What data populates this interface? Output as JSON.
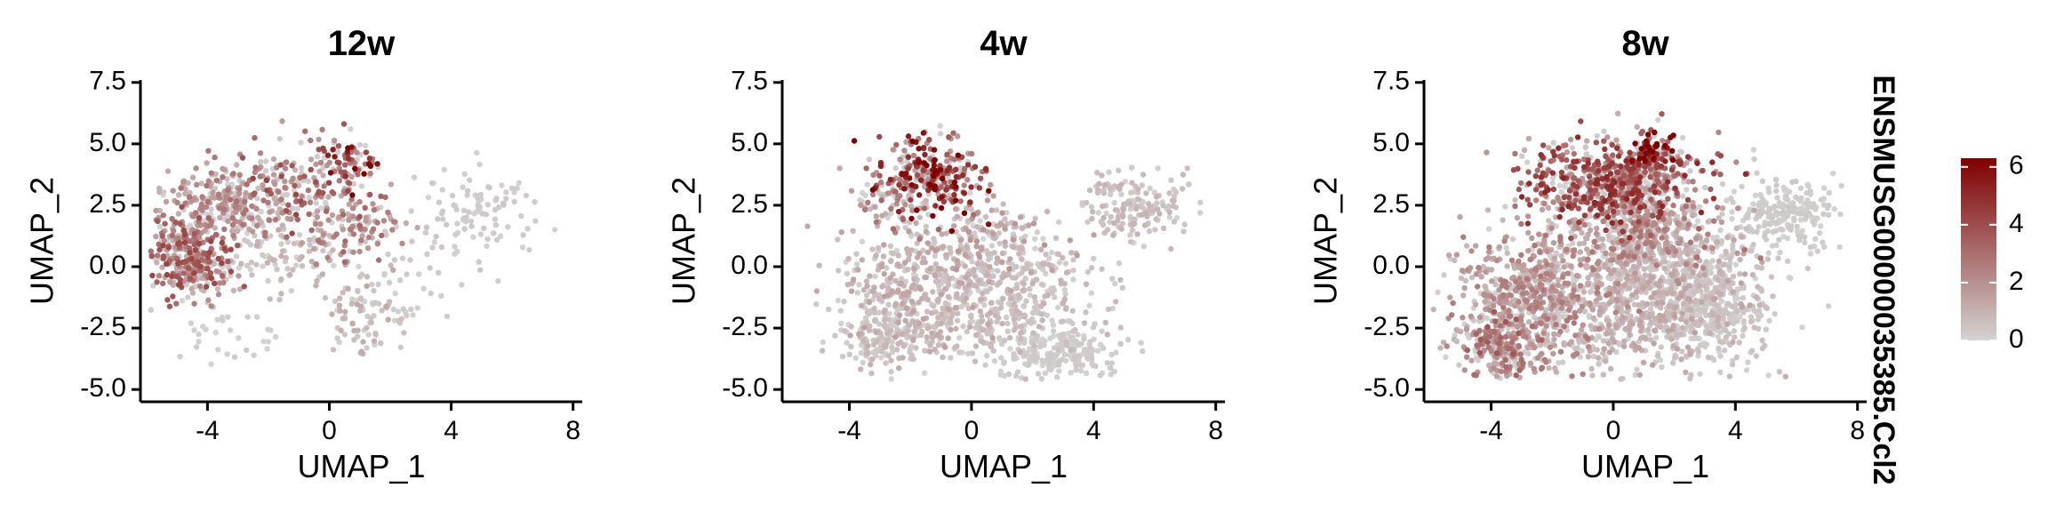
{
  "chart_data": {
    "type": "scatter",
    "feature": "ENSMUSG00000035385.Ccl2",
    "colorbar": {
      "min": 0,
      "max": 6.3,
      "ticks": [
        "0",
        "2",
        "4",
        "6"
      ],
      "low_color": "#d3d3d3",
      "high_color": "#7f0000"
    },
    "axes": {
      "xlabel": "UMAP_1",
      "ylabel": "UMAP_2",
      "xlim": [
        -6.2,
        8.3
      ],
      "ylim": [
        -5.5,
        7.6
      ],
      "xticks": [
        "-4",
        "0",
        "4",
        "8"
      ],
      "yticks": [
        "7.5",
        "5.0",
        "2.5",
        "0.0",
        "-2.5",
        "-5.0"
      ]
    },
    "panels": [
      {
        "title": "12w",
        "clusters": [
          {
            "cx": -4.6,
            "cy": 0.4,
            "sx": 0.7,
            "sy": 0.8,
            "n": 320,
            "mean": 2.6
          },
          {
            "cx": -3.3,
            "cy": 2.6,
            "sx": 1.0,
            "sy": 0.7,
            "n": 260,
            "mean": 1.8
          },
          {
            "cx": -1.0,
            "cy": 3.3,
            "sx": 1.1,
            "sy": 0.9,
            "n": 160,
            "mean": 2.6
          },
          {
            "cx": 0.8,
            "cy": 4.3,
            "sx": 0.5,
            "sy": 0.5,
            "n": 60,
            "mean": 4.6
          },
          {
            "cx": 0.8,
            "cy": 1.6,
            "sx": 0.8,
            "sy": 0.9,
            "n": 120,
            "mean": 2.0
          },
          {
            "cx": -1.8,
            "cy": 0.3,
            "sx": 1.1,
            "sy": 0.8,
            "n": 90,
            "mean": 0.7
          },
          {
            "cx": 1.3,
            "cy": -2.0,
            "sx": 0.6,
            "sy": 1.0,
            "n": 80,
            "mean": 0.8
          },
          {
            "cx": 5.0,
            "cy": 2.3,
            "sx": 1.0,
            "sy": 0.9,
            "n": 90,
            "mean": 0.2
          },
          {
            "cx": 2.6,
            "cy": 0.0,
            "sx": 1.3,
            "sy": 1.4,
            "n": 40,
            "mean": 0.3
          },
          {
            "cx": -3.2,
            "cy": -2.6,
            "sx": 0.9,
            "sy": 0.6,
            "n": 30,
            "mean": 0.1
          }
        ]
      },
      {
        "title": "4w",
        "clusters": [
          {
            "cx": -1.2,
            "cy": 3.8,
            "sx": 0.9,
            "sy": 0.7,
            "n": 260,
            "mean": 4.2
          },
          {
            "cx": -2.6,
            "cy": 2.8,
            "sx": 0.7,
            "sy": 0.8,
            "n": 70,
            "mean": 2.0
          },
          {
            "cx": -1.8,
            "cy": -1.0,
            "sx": 1.4,
            "sy": 1.3,
            "n": 420,
            "mean": 0.9
          },
          {
            "cx": 1.3,
            "cy": -1.2,
            "sx": 1.4,
            "sy": 1.4,
            "n": 380,
            "mean": 0.6
          },
          {
            "cx": 2.8,
            "cy": -3.5,
            "sx": 1.0,
            "sy": 0.5,
            "n": 180,
            "mean": 0.2
          },
          {
            "cx": 5.4,
            "cy": 2.4,
            "sx": 0.9,
            "sy": 0.7,
            "n": 170,
            "mean": 0.6
          },
          {
            "cx": 0.3,
            "cy": 1.2,
            "sx": 1.2,
            "sy": 0.9,
            "n": 140,
            "mean": 1.2
          },
          {
            "cx": -3.0,
            "cy": -3.0,
            "sx": 0.7,
            "sy": 0.6,
            "n": 120,
            "mean": 0.5
          }
        ]
      },
      {
        "title": "8w",
        "clusters": [
          {
            "cx": 0.0,
            "cy": 3.4,
            "sx": 1.4,
            "sy": 0.9,
            "n": 650,
            "mean": 3.2
          },
          {
            "cx": 1.3,
            "cy": 4.6,
            "sx": 0.4,
            "sy": 0.4,
            "n": 90,
            "mean": 5.2
          },
          {
            "cx": -2.6,
            "cy": -1.5,
            "sx": 1.3,
            "sy": 1.6,
            "n": 700,
            "mean": 1.7
          },
          {
            "cx": 1.0,
            "cy": -1.0,
            "sx": 1.6,
            "sy": 1.6,
            "n": 850,
            "mean": 0.9
          },
          {
            "cx": 3.2,
            "cy": -1.6,
            "sx": 1.0,
            "sy": 1.2,
            "n": 350,
            "mean": 0.4
          },
          {
            "cx": 5.6,
            "cy": 2.1,
            "sx": 0.9,
            "sy": 0.8,
            "n": 220,
            "mean": 0.2
          },
          {
            "cx": 1.2,
            "cy": 1.5,
            "sx": 1.2,
            "sy": 1.0,
            "n": 300,
            "mean": 1.8
          },
          {
            "cx": -3.8,
            "cy": -3.3,
            "sx": 0.6,
            "sy": 0.6,
            "n": 160,
            "mean": 2.3
          }
        ]
      }
    ]
  }
}
